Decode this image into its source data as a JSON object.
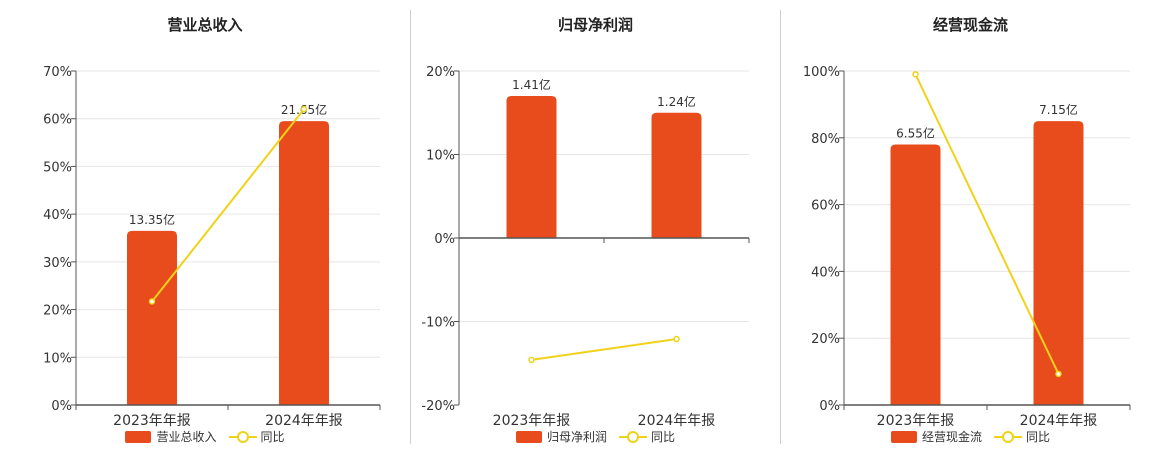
{
  "colors": {
    "bar": "#e84c1c",
    "line": "#f0d21a",
    "axis": "#555555",
    "grid": "#e6e6e6"
  },
  "chart_data": [
    {
      "type": "bar",
      "title": "营业总收入",
      "categories": [
        "2023年年报",
        "2024年年报"
      ],
      "yticks": [
        "0%",
        "10%",
        "20%",
        "30%",
        "40%",
        "50%",
        "60%",
        "70%"
      ],
      "ylim": [
        0,
        70
      ],
      "series": [
        {
          "name": "营业总收入",
          "type": "bar",
          "values": [
            36.5,
            59.5
          ],
          "labels": [
            "13.35亿",
            "21.65亿"
          ]
        },
        {
          "name": "同比",
          "type": "line",
          "values": [
            21.7,
            62.0
          ]
        }
      ],
      "legend": "bottom",
      "grid": true
    },
    {
      "type": "bar",
      "title": "归母净利润",
      "categories": [
        "2023年年报",
        "2024年年报"
      ],
      "yticks": [
        "-20%",
        "-10%",
        "0%",
        "10%",
        "20%"
      ],
      "ylim": [
        -20,
        20
      ],
      "series": [
        {
          "name": "归母净利润",
          "type": "bar",
          "values": [
            17.0,
            15.0
          ],
          "labels": [
            "1.41亿",
            "1.24亿"
          ]
        },
        {
          "name": "同比",
          "type": "line",
          "values": [
            -14.6,
            -12.1
          ]
        }
      ],
      "legend": "bottom",
      "grid": true
    },
    {
      "type": "bar",
      "title": "经营现金流",
      "categories": [
        "2023年年报",
        "2024年年报"
      ],
      "yticks": [
        "0%",
        "20%",
        "40%",
        "60%",
        "80%",
        "100%"
      ],
      "ylim": [
        0,
        100
      ],
      "series": [
        {
          "name": "经营现金流",
          "type": "bar",
          "values": [
            78.0,
            85.0
          ],
          "labels": [
            "6.55亿",
            "7.15亿"
          ]
        },
        {
          "name": "同比",
          "type": "line",
          "values": [
            99.0,
            9.3
          ]
        }
      ],
      "legend": "bottom",
      "grid": true
    }
  ]
}
